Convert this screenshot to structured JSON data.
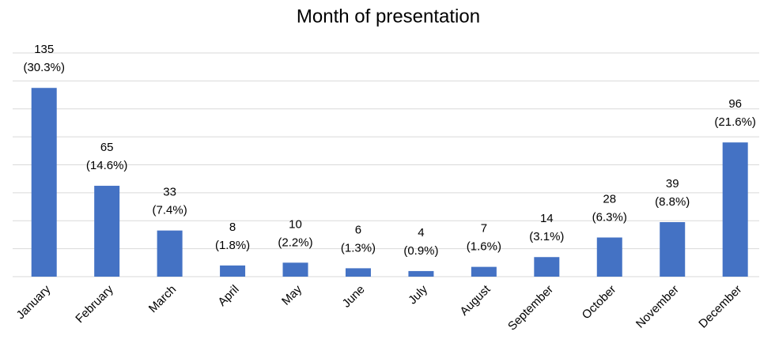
{
  "chart_data": {
    "type": "bar",
    "title": "Month of presentation",
    "categories": [
      "January",
      "February",
      "March",
      "April",
      "May",
      "June",
      "July",
      "August",
      "September",
      "October",
      "November",
      "December"
    ],
    "values": [
      135,
      65,
      33,
      8,
      10,
      6,
      4,
      7,
      14,
      28,
      39,
      96
    ],
    "percent_labels": [
      "(30.3%)",
      "(14.6%)",
      "(7.4%)",
      "(1.8%)",
      "(2.2%)",
      "(1.3%)",
      "(0.9%)",
      "(1.6%)",
      "(3.1%)",
      "(6.3%)",
      "(8.8%)",
      "(21.6%)"
    ],
    "color": "#4472c4",
    "ylim": [
      0,
      160
    ],
    "yticks": [
      0,
      20,
      40,
      60,
      80,
      100,
      120,
      140,
      160
    ],
    "grid": true
  }
}
